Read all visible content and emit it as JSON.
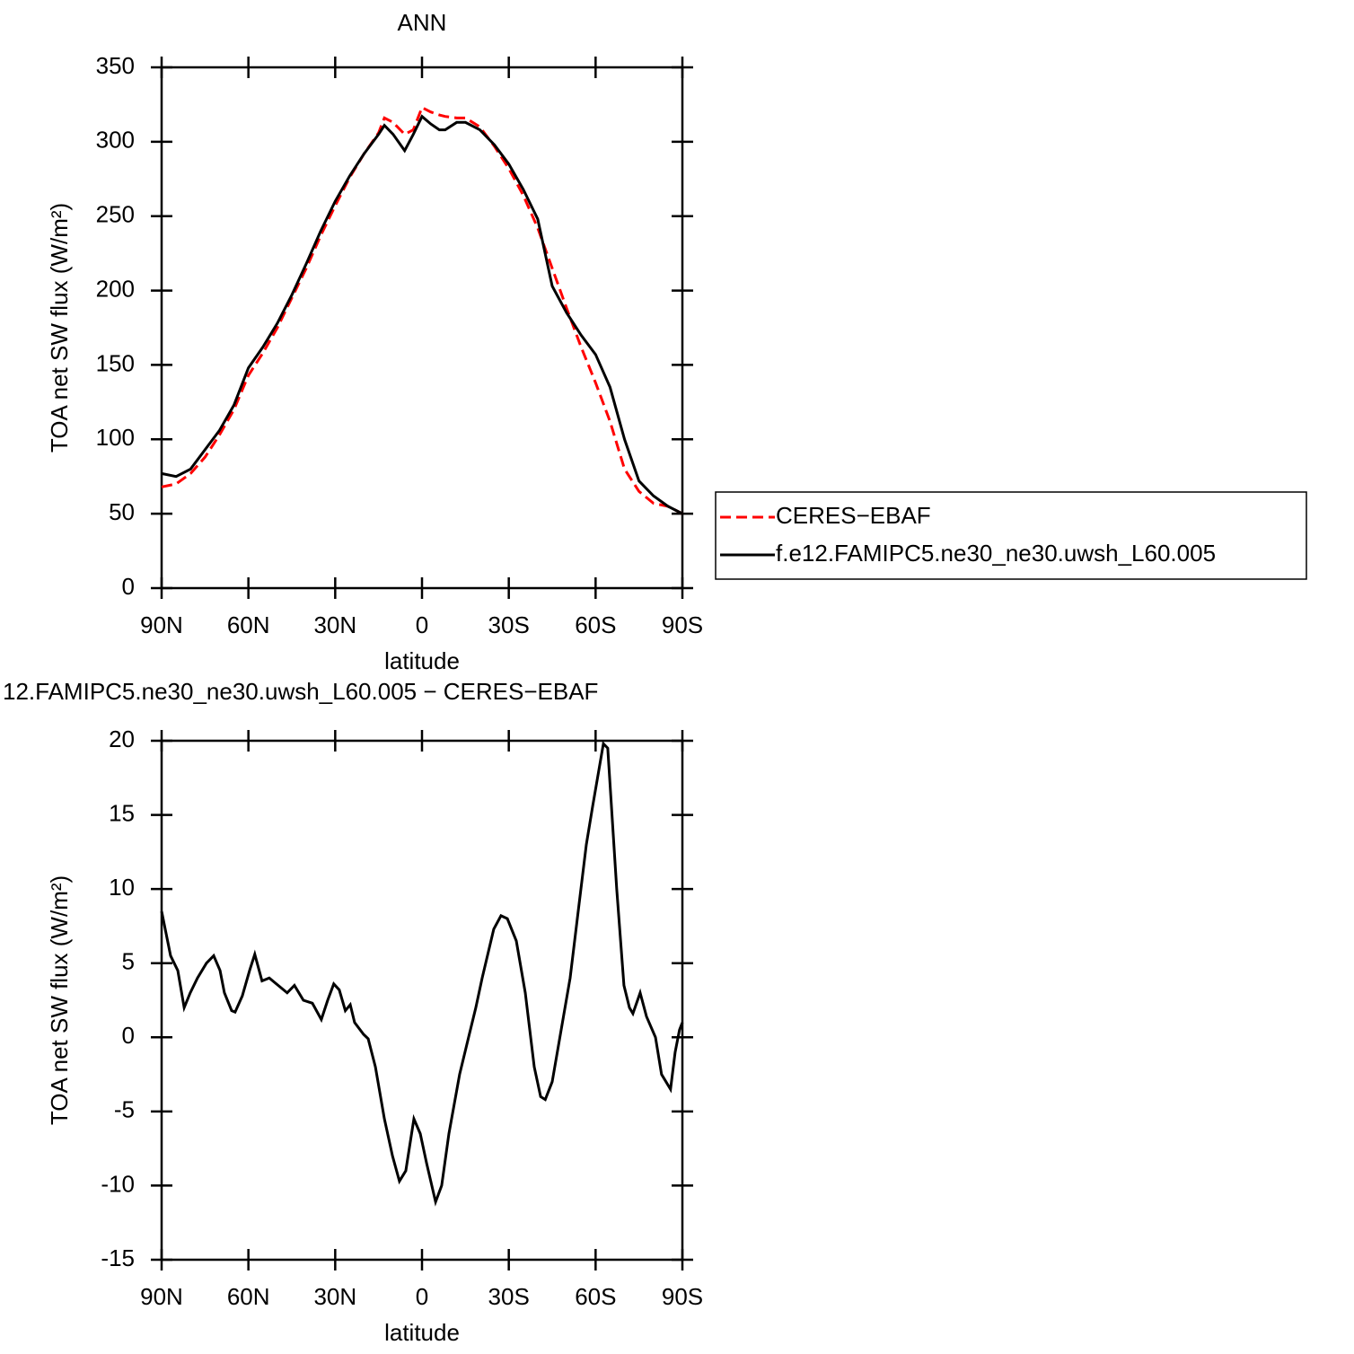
{
  "chart_data": [
    {
      "type": "line",
      "title": "ANN",
      "xlabel": "latitude",
      "ylabel": "TOA net SW flux (W/m²)",
      "x": [
        90,
        85,
        80,
        75,
        70,
        65,
        60,
        55,
        50,
        45,
        40,
        35,
        30,
        25,
        20,
        15,
        13,
        10,
        6,
        3,
        0,
        -3,
        -6,
        -8,
        -12,
        -15,
        -20,
        -25,
        -30,
        -35,
        -40,
        -45,
        -50,
        -55,
        -60,
        -65,
        -70,
        -75,
        -80,
        -85,
        -90
      ],
      "series": [
        {
          "name": "CERES−EBAF",
          "color": "#ff0000",
          "dashed": true,
          "values": [
            68,
            70,
            77,
            88,
            103,
            120,
            143,
            158,
            175,
            195,
            215,
            237,
            257,
            276,
            292,
            306,
            316,
            313,
            305,
            308,
            323,
            320,
            318,
            317,
            316,
            316,
            310,
            297,
            282,
            264,
            242,
            215,
            188,
            162,
            138,
            112,
            80,
            65,
            57,
            55,
            50
          ]
        },
        {
          "name": "f.e12.FAMIPC5.ne30_ne30.uwsh_L60.005",
          "color": "#000000",
          "dashed": false,
          "values": [
            77,
            75,
            80,
            93,
            106,
            123,
            148,
            162,
            178,
            197,
            218,
            240,
            260,
            277,
            292,
            305,
            311,
            305,
            294,
            305,
            317,
            312,
            308,
            308,
            313,
            313,
            308,
            298,
            285,
            268,
            248,
            203,
            185,
            170,
            157,
            135,
            100,
            72,
            62,
            55,
            50
          ]
        }
      ],
      "xlim": [
        90,
        -90
      ],
      "xticks": [
        {
          "value": 90,
          "label": "90N"
        },
        {
          "value": 60,
          "label": "60N"
        },
        {
          "value": 30,
          "label": "30N"
        },
        0,
        {
          "value": -30,
          "label": "30S"
        },
        {
          "value": -60,
          "label": "60S"
        },
        {
          "value": -90,
          "label": "90S"
        }
      ],
      "ylim": [
        0,
        350
      ],
      "yticks": [
        0,
        50,
        100,
        150,
        200,
        250,
        300,
        350
      ],
      "legend": "right"
    },
    {
      "type": "line",
      "title": "12.FAMIPC5.ne30_ne30.uwsh_L60.005 − CERES−EBAF",
      "xlabel": "latitude",
      "ylabel": "TOA net SW flux (W/m²)",
      "x": [
        90,
        86.9,
        84.4,
        82.2,
        80.1,
        77.6,
        74.5,
        72.0,
        69.8,
        68.3,
        65.8,
        64.6,
        62.1,
        59.6,
        57.8,
        55.3,
        52.8,
        49.7,
        46.6,
        44.1,
        41.0,
        37.9,
        34.8,
        32.6,
        30.5,
        28.6,
        26.5,
        24.8,
        23.3,
        20.2,
        18.6,
        16.1,
        13.0,
        10.2,
        7.8,
        5.6,
        2.8,
        0.6,
        -1.6,
        -4.7,
        -6.8,
        -9.3,
        -13.0,
        -16.1,
        -18.6,
        -20.8,
        -24.8,
        -27.3,
        -29.5,
        -32.6,
        -35.7,
        -38.8,
        -41.0,
        -42.6,
        -45.0,
        -48.1,
        -51.2,
        -54.3,
        -56.8,
        -59.0,
        -62.7,
        -64.2,
        -67.3,
        -69.8,
        -71.7,
        -72.9,
        -75.4,
        -77.6,
        -80.7,
        -82.8,
        -85.9,
        -87.5,
        -89.0,
        -90
      ],
      "series": [
        {
          "name": null,
          "color": "#000000",
          "dashed": false,
          "values": [
            8.5,
            5.5,
            4.5,
            2,
            3,
            4,
            5,
            5.5,
            4.5,
            3,
            1.8,
            1.7,
            2.8,
            4.5,
            5.6,
            3.8,
            4,
            3.5,
            3,
            3.5,
            2.5,
            2.3,
            1.2,
            2.5,
            3.6,
            3.2,
            1.8,
            2.2,
            1,
            0.2,
            -0.1,
            -2,
            -5.5,
            -8,
            -9.7,
            -9,
            -5.5,
            -6.5,
            -8.5,
            -11.1,
            -10,
            -6.5,
            -2.5,
            0,
            2,
            4,
            7.3,
            8.2,
            8,
            6.5,
            3,
            -2,
            -4,
            -4.2,
            -3,
            0.5,
            4,
            9,
            13,
            15.6,
            19.8,
            19.5,
            10,
            3.5,
            2,
            1.6,
            3,
            1.4,
            0,
            -2.5,
            -3.5,
            -1,
            0.5,
            1
          ]
        }
      ],
      "xlim": [
        90,
        -90
      ],
      "xticks": [
        {
          "value": 90,
          "label": "90N"
        },
        {
          "value": 60,
          "label": "60N"
        },
        {
          "value": 30,
          "label": "30N"
        },
        0,
        {
          "value": -30,
          "label": "30S"
        },
        {
          "value": -60,
          "label": "60S"
        },
        {
          "value": -90,
          "label": "90S"
        }
      ],
      "ylim": [
        -15,
        20
      ],
      "yticks": [
        -15,
        -10,
        -5,
        0,
        5,
        10,
        15,
        20
      ]
    }
  ]
}
